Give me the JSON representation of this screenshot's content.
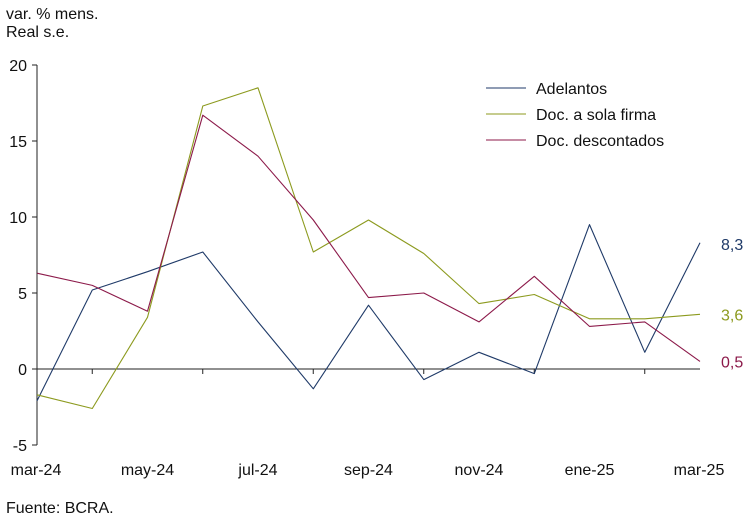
{
  "chart_data": {
    "type": "line",
    "ylabel_lines": [
      "var. % mens.",
      "Real s.e."
    ],
    "source": "Fuente: BCRA.",
    "ylim": [
      -5,
      20
    ],
    "yticks": [
      -5,
      0,
      5,
      10,
      15,
      20
    ],
    "ytick_labels": [
      "-5",
      "0",
      "5",
      "10",
      "15",
      "20"
    ],
    "x": [
      "mar-24",
      "abr-24",
      "may-24",
      "jun-24",
      "jul-24",
      "ago-24",
      "sep-24",
      "oct-24",
      "nov-24",
      "dic-24",
      "ene-25",
      "feb-25",
      "mar-25"
    ],
    "xtick_labels": [
      "mar-24",
      "may-24",
      "jul-24",
      "sep-24",
      "nov-24",
      "ene-25",
      "mar-25"
    ],
    "legend_position": "top-right",
    "grid": false,
    "series": [
      {
        "name": "Adelantos",
        "color": "#1f3a68",
        "values": [
          -2.1,
          5.2,
          6.4,
          7.7,
          3.1,
          -1.3,
          4.2,
          -0.7,
          1.1,
          -0.3,
          9.5,
          1.1,
          8.3
        ],
        "end_label": "8,3"
      },
      {
        "name": "Doc. a sola firma",
        "color": "#8c9a1e",
        "values": [
          -1.7,
          -2.6,
          3.4,
          17.3,
          18.5,
          7.7,
          9.8,
          7.6,
          4.3,
          4.9,
          3.3,
          3.3,
          3.6
        ],
        "end_label": "3,6"
      },
      {
        "name": "Doc. descontados",
        "color": "#8c1a4a",
        "values": [
          6.3,
          5.5,
          3.8,
          16.7,
          14.0,
          9.8,
          4.7,
          5.0,
          3.1,
          6.1,
          2.8,
          3.1,
          0.5
        ],
        "end_label": "0,5"
      }
    ]
  }
}
